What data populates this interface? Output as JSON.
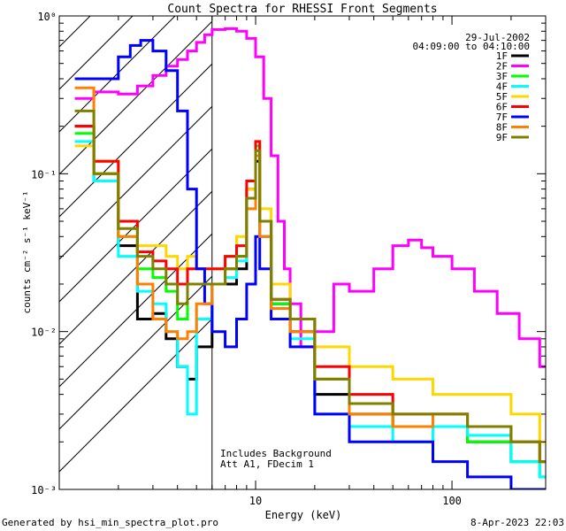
{
  "chart_data": {
    "type": "line",
    "title": "Count Spectra for RHESSI Front Segments",
    "xlabel": "Energy (keV)",
    "ylabel": "counts cm⁻² s⁻¹ keV⁻¹",
    "x_scale": "log",
    "y_scale": "log",
    "xlim": [
      1,
      300
    ],
    "ylim": [
      0.001,
      1
    ],
    "x_ticks": [
      {
        "value": 10,
        "label": "10"
      },
      {
        "value": 100,
        "label": "100"
      }
    ],
    "y_ticks": [
      {
        "value": 1,
        "label": "10⁰"
      },
      {
        "value": 0.1,
        "label": "10⁻¹"
      },
      {
        "value": 0.01,
        "label": "10⁻²"
      },
      {
        "value": 0.001,
        "label": "10⁻³"
      }
    ],
    "date": "29-Jul-2002",
    "time_range": "04:09:00 to 04:10:00",
    "shaded_region_upper_energy_kev": 6,
    "annotation_lines": [
      "Includes Background",
      "Att A1, FDecim 1"
    ],
    "legend_position": "top-right",
    "series": [
      {
        "name": "1F",
        "color": "#000000",
        "x": [
          1.2,
          1.5,
          2,
          2.5,
          3,
          3.5,
          4,
          4.5,
          5,
          6,
          7,
          8,
          9,
          10,
          10.5,
          12,
          15,
          20,
          30,
          50,
          80,
          120,
          200,
          280
        ],
        "y": [
          0.2,
          0.09,
          0.035,
          0.012,
          0.013,
          0.009,
          0.006,
          0.005,
          0.008,
          0.02,
          0.02,
          0.025,
          0.08,
          0.12,
          0.04,
          0.015,
          0.01,
          0.004,
          0.003,
          0.0025,
          0.0025,
          0.002,
          0.0015,
          0.0015
        ]
      },
      {
        "name": "2F",
        "color": "#ff00ff",
        "x": [
          1.2,
          1.5,
          2,
          2.5,
          3,
          3.5,
          4,
          4.5,
          5,
          5.5,
          6,
          7,
          8,
          9,
          10,
          11,
          12,
          13,
          14,
          15,
          17,
          20,
          25,
          30,
          40,
          50,
          60,
          70,
          80,
          100,
          130,
          170,
          220,
          280
        ],
        "y": [
          0.3,
          0.33,
          0.32,
          0.36,
          0.42,
          0.48,
          0.53,
          0.6,
          0.68,
          0.76,
          0.82,
          0.83,
          0.8,
          0.72,
          0.55,
          0.3,
          0.13,
          0.05,
          0.025,
          0.015,
          0.008,
          0.01,
          0.02,
          0.018,
          0.025,
          0.035,
          0.038,
          0.034,
          0.03,
          0.025,
          0.018,
          0.013,
          0.009,
          0.006
        ]
      },
      {
        "name": "3F",
        "color": "#00ff00",
        "x": [
          1.2,
          1.5,
          2,
          2.5,
          3,
          3.5,
          4,
          4.5,
          5,
          6,
          7,
          8,
          9,
          10,
          10.5,
          12,
          15,
          20,
          30,
          50,
          80,
          120,
          200,
          280
        ],
        "y": [
          0.18,
          0.1,
          0.04,
          0.025,
          0.022,
          0.018,
          0.012,
          0.02,
          0.02,
          0.02,
          0.025,
          0.03,
          0.07,
          0.15,
          0.05,
          0.015,
          0.012,
          0.005,
          0.0035,
          0.0025,
          0.0025,
          0.002,
          0.0015,
          0.0012
        ]
      },
      {
        "name": "4F",
        "color": "#00ffff",
        "x": [
          1.2,
          1.5,
          2,
          2.5,
          3,
          3.5,
          4,
          4.5,
          5,
          6,
          7,
          8,
          9,
          10,
          10.5,
          12,
          15,
          20,
          30,
          50,
          80,
          120,
          200,
          280
        ],
        "y": [
          0.16,
          0.09,
          0.03,
          0.018,
          0.015,
          0.01,
          0.006,
          0.003,
          0.012,
          0.02,
          0.022,
          0.028,
          0.06,
          0.13,
          0.04,
          0.014,
          0.009,
          0.003,
          0.0025,
          0.002,
          0.0025,
          0.0022,
          0.0015,
          0.0012
        ]
      },
      {
        "name": "5F",
        "color": "#ffd700",
        "x": [
          1.2,
          1.5,
          2,
          2.5,
          3,
          3.5,
          4,
          4.5,
          5,
          6,
          7,
          8,
          9,
          10,
          10.5,
          12,
          15,
          20,
          30,
          50,
          80,
          120,
          200,
          280
        ],
        "y": [
          0.15,
          0.12,
          0.05,
          0.035,
          0.035,
          0.03,
          0.025,
          0.03,
          0.025,
          0.025,
          0.03,
          0.04,
          0.08,
          0.14,
          0.06,
          0.02,
          0.012,
          0.008,
          0.006,
          0.005,
          0.004,
          0.004,
          0.003,
          0.002
        ]
      },
      {
        "name": "6F",
        "color": "#ff0000",
        "x": [
          1.2,
          1.5,
          2,
          2.5,
          3,
          3.5,
          4,
          4.5,
          5,
          6,
          7,
          8,
          9,
          10,
          10.5,
          12,
          15,
          20,
          30,
          50,
          80,
          120,
          200,
          280
        ],
        "y": [
          0.2,
          0.12,
          0.05,
          0.032,
          0.028,
          0.025,
          0.02,
          0.025,
          0.025,
          0.025,
          0.03,
          0.035,
          0.09,
          0.16,
          0.05,
          0.016,
          0.012,
          0.006,
          0.004,
          0.003,
          0.003,
          0.0025,
          0.002,
          0.0015
        ]
      },
      {
        "name": "7F",
        "color": "#0000ff",
        "x": [
          1.2,
          1.5,
          2,
          2.3,
          2.6,
          3,
          3.5,
          4,
          4.5,
          5,
          5.5,
          6,
          7,
          8,
          9,
          10,
          10.5,
          12,
          15,
          20,
          30,
          50,
          80,
          120,
          200,
          280
        ],
        "y": [
          0.4,
          0.4,
          0.55,
          0.65,
          0.7,
          0.6,
          0.45,
          0.25,
          0.08,
          0.025,
          0.015,
          0.01,
          0.008,
          0.012,
          0.02,
          0.04,
          0.025,
          0.012,
          0.008,
          0.003,
          0.002,
          0.002,
          0.0015,
          0.0012,
          0.001,
          0.001
        ]
      },
      {
        "name": "8F",
        "color": "#ff8000",
        "x": [
          1.2,
          1.5,
          2,
          2.5,
          3,
          3.5,
          4,
          4.5,
          5,
          6,
          7,
          8,
          9,
          10,
          10.5,
          12,
          15,
          20,
          30,
          50,
          80,
          120,
          200,
          280
        ],
        "y": [
          0.35,
          0.1,
          0.04,
          0.02,
          0.012,
          0.01,
          0.009,
          0.01,
          0.015,
          0.02,
          0.025,
          0.03,
          0.06,
          0.13,
          0.04,
          0.014,
          0.01,
          0.005,
          0.003,
          0.0025,
          0.003,
          0.0025,
          0.002,
          0.0015
        ]
      },
      {
        "name": "9F",
        "color": "#808000",
        "x": [
          1.2,
          1.5,
          2,
          2.5,
          3,
          3.5,
          4,
          4.5,
          5,
          6,
          7,
          8,
          9,
          10,
          10.5,
          12,
          15,
          20,
          30,
          50,
          80,
          120,
          200,
          280
        ],
        "y": [
          0.25,
          0.1,
          0.045,
          0.03,
          0.025,
          0.02,
          0.015,
          0.02,
          0.02,
          0.02,
          0.025,
          0.03,
          0.07,
          0.14,
          0.05,
          0.016,
          0.012,
          0.005,
          0.0035,
          0.003,
          0.003,
          0.0025,
          0.002,
          0.0015
        ]
      }
    ]
  },
  "footer": {
    "generated_by": "Generated by hsi_min_spectra_plot.pro",
    "timestamp": "8-Apr-2023 22:03"
  }
}
